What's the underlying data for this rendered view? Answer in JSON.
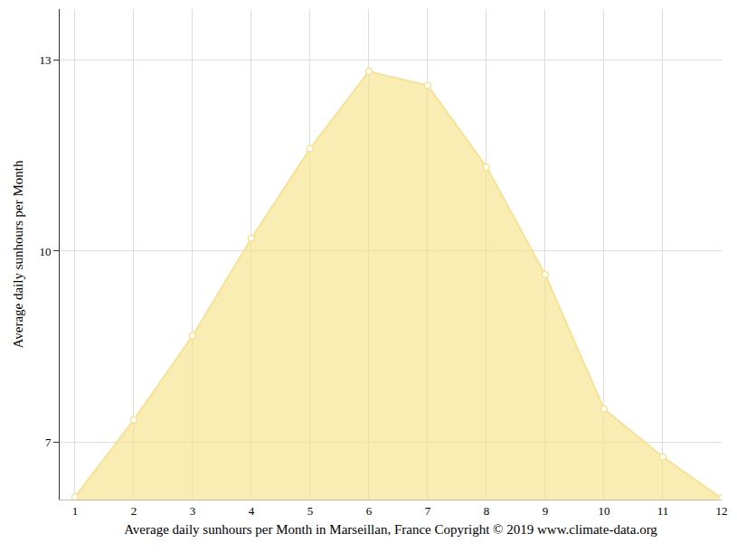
{
  "chart_data": {
    "type": "area",
    "x_label": "Average daily sunhours per Month in Marseillan, France Copyright © 2019 www.climate-data.org",
    "y_label": "Average daily sunhours per Month",
    "x": [
      1,
      2,
      3,
      4,
      5,
      6,
      7,
      8,
      9,
      10,
      11,
      12
    ],
    "values": [
      6.14,
      7.35,
      8.67,
      10.2,
      11.61,
      12.82,
      12.6,
      11.32,
      9.63,
      7.52,
      6.77,
      6.12
    ],
    "color": "#f7e38c",
    "marker": "circle",
    "xlim": [
      0.74,
      12
    ],
    "xticks": [
      1,
      2,
      3,
      4,
      5,
      6,
      7,
      8,
      9,
      10,
      11,
      12
    ],
    "ylim": [
      6.1,
      13.8
    ],
    "yticks": [
      7,
      10,
      13
    ],
    "grid": true
  }
}
